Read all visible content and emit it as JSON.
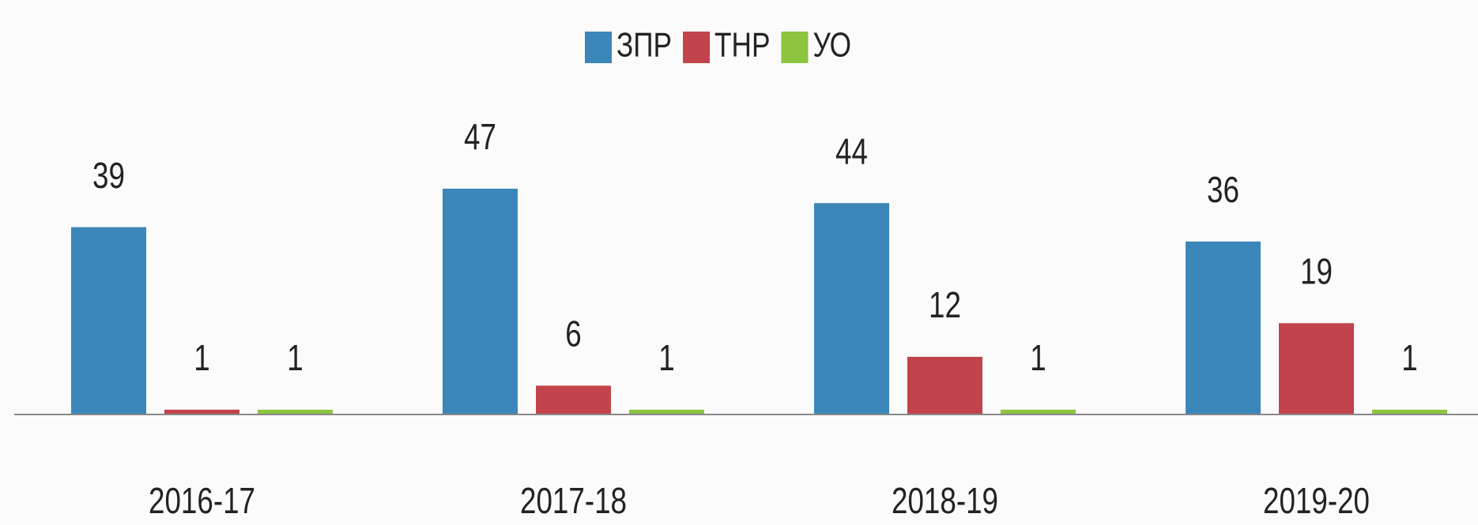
{
  "chart_data": {
    "type": "bar",
    "categories": [
      "2016-17",
      "2017-18",
      "2018-19",
      "2019-20"
    ],
    "series": [
      {
        "name": "ЗПР",
        "color": "#3b87b9",
        "values": [
          39,
          47,
          44,
          36
        ]
      },
      {
        "name": "ТНР",
        "color": "#c2434b",
        "values": [
          1,
          6,
          12,
          19
        ]
      },
      {
        "name": "УО",
        "color": "#8cc540",
        "values": [
          1,
          1,
          1,
          1
        ]
      }
    ],
    "legend": "top"
  }
}
